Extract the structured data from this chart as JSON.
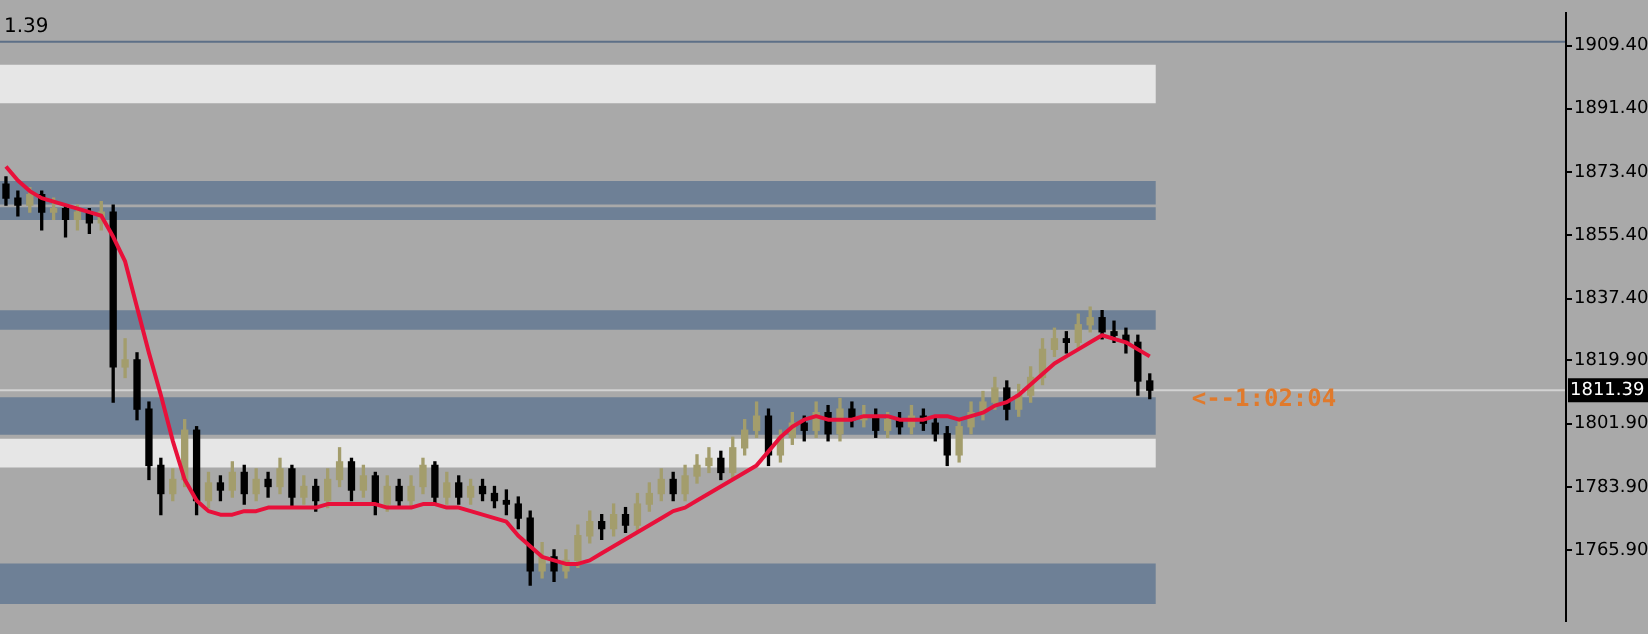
{
  "chart_data": {
    "type": "candlestick",
    "categories": [
      null,
      null,
      null,
      null,
      null,
      null,
      null,
      null,
      null,
      null,
      null,
      null,
      null,
      null,
      null,
      null,
      null,
      null,
      null,
      null,
      null,
      null,
      null,
      null,
      null,
      null,
      null,
      null,
      null,
      null,
      null,
      null,
      null,
      null,
      null,
      null,
      null,
      null,
      null,
      null,
      null,
      null,
      null,
      null,
      null,
      null,
      null,
      null,
      null,
      null,
      null,
      null,
      null,
      null,
      null,
      null,
      null,
      null,
      null,
      null,
      null,
      null,
      null,
      null,
      null,
      null,
      null,
      null,
      null,
      null,
      null,
      null,
      null,
      null,
      null,
      null,
      null,
      null,
      null,
      null,
      null,
      null,
      null,
      null,
      null,
      null,
      null,
      null,
      null,
      null,
      null,
      null,
      null,
      null,
      null,
      null,
      null
    ],
    "series": [
      {
        "colors": [
          "#000000",
          "#000000",
          "#a39d6c",
          "#000000",
          "#a39d6c",
          "#000000",
          "#a39d6c",
          "#000000",
          "#a39d6c",
          "#000000",
          "#a39d6c",
          "#000000",
          "#000000",
          "#000000",
          "#a39d6c",
          "#a39d6c",
          "#000000",
          "#a39d6c",
          "#000000",
          "#a39d6c",
          "#000000",
          "#a39d6c",
          "#000000",
          "#a39d6c",
          "#000000",
          "#a39d6c",
          "#000000",
          "#a39d6c",
          "#a39d6c",
          "#000000",
          "#a39d6c",
          "#000000",
          "#a39d6c",
          "#000000",
          "#a39d6c",
          "#a39d6c",
          "#000000",
          "#a39d6c",
          "#000000",
          "#a39d6c",
          "#000000",
          "#000000",
          "#000000",
          "#000000",
          "#000000",
          "#a39d6c",
          "#000000",
          "#a39d6c",
          "#a39d6c",
          "#a39d6c",
          "#000000",
          "#a39d6c",
          "#000000",
          "#a39d6c",
          "#a39d6c",
          "#a39d6c",
          "#000000",
          "#a39d6c",
          "#a39d6c",
          "#a39d6c",
          "#000000",
          "#a39d6c",
          "#a39d6c",
          "#a39d6c",
          "#000000",
          "#a39d6c",
          "#a39d6c",
          "#000000",
          "#a39d6c",
          "#000000",
          "#a39d6c",
          "#000000",
          "#a39d6c",
          "#000000",
          "#a39d6c",
          "#000000",
          "#a39d6c",
          "#000000",
          "#000000",
          "#000000",
          "#a39d6c",
          "#a39d6c",
          "#a39d6c",
          "#a39d6c",
          "#000000",
          "#a39d6c",
          "#a39d6c",
          "#a39d6c",
          "#a39d6c",
          "#000000",
          "#a39d6c",
          "#a39d6c",
          "#000000",
          "#000000",
          "#000000",
          "#000000",
          "#000000"
        ],
        "ohlc": [
          [
            1870,
            1872,
            1864,
            1866
          ],
          [
            1866,
            1868,
            1861,
            1864
          ],
          [
            1864,
            1869,
            1862,
            1867
          ],
          [
            1867,
            1868,
            1857,
            1862
          ],
          [
            1862,
            1866,
            1860,
            1863
          ],
          [
            1863,
            1864,
            1855,
            1860
          ],
          [
            1860,
            1864,
            1857,
            1862
          ],
          [
            1862,
            1863,
            1856,
            1859
          ],
          [
            1859,
            1865,
            1857,
            1862
          ],
          [
            1862,
            1864,
            1808,
            1818
          ],
          [
            1818,
            1826,
            1815,
            1820
          ],
          [
            1820,
            1822,
            1803,
            1806
          ],
          [
            1806,
            1808,
            1786,
            1790
          ],
          [
            1790,
            1792,
            1776,
            1782
          ],
          [
            1782,
            1789,
            1780,
            1786
          ],
          [
            1786,
            1803,
            1784,
            1800
          ],
          [
            1800,
            1801,
            1776,
            1780
          ],
          [
            1780,
            1788,
            1778,
            1785
          ],
          [
            1785,
            1787,
            1780,
            1783
          ],
          [
            1783,
            1791,
            1781,
            1788
          ],
          [
            1788,
            1790,
            1779,
            1782
          ],
          [
            1782,
            1789,
            1780,
            1786
          ],
          [
            1786,
            1788,
            1781,
            1784
          ],
          [
            1784,
            1792,
            1782,
            1789
          ],
          [
            1789,
            1790,
            1778,
            1781
          ],
          [
            1781,
            1787,
            1779,
            1784
          ],
          [
            1784,
            1786,
            1777,
            1780
          ],
          [
            1780,
            1789,
            1778,
            1786
          ],
          [
            1786,
            1795,
            1784,
            1791
          ],
          [
            1791,
            1792,
            1780,
            1783
          ],
          [
            1783,
            1790,
            1781,
            1787
          ],
          [
            1787,
            1788,
            1776,
            1779
          ],
          [
            1779,
            1787,
            1777,
            1784
          ],
          [
            1784,
            1786,
            1778,
            1780
          ],
          [
            1780,
            1787,
            1778,
            1784
          ],
          [
            1784,
            1792,
            1782,
            1790
          ],
          [
            1790,
            1791,
            1779,
            1781
          ],
          [
            1781,
            1788,
            1779,
            1785
          ],
          [
            1785,
            1787,
            1779,
            1781
          ],
          [
            1781,
            1786,
            1779,
            1784
          ],
          [
            1784,
            1786,
            1780,
            1782
          ],
          [
            1782,
            1784,
            1778,
            1780
          ],
          [
            1780,
            1783,
            1776,
            1779
          ],
          [
            1779,
            1781,
            1772,
            1775
          ],
          [
            1775,
            1777,
            1756,
            1760
          ],
          [
            1760,
            1768,
            1758,
            1764
          ],
          [
            1764,
            1766,
            1757,
            1760
          ],
          [
            1760,
            1766,
            1758,
            1763
          ],
          [
            1763,
            1773,
            1761,
            1770
          ],
          [
            1770,
            1777,
            1768,
            1774
          ],
          [
            1774,
            1776,
            1769,
            1772
          ],
          [
            1772,
            1779,
            1770,
            1776
          ],
          [
            1776,
            1778,
            1771,
            1773
          ],
          [
            1773,
            1782,
            1771,
            1779
          ],
          [
            1779,
            1785,
            1777,
            1782
          ],
          [
            1782,
            1789,
            1780,
            1786
          ],
          [
            1786,
            1788,
            1780,
            1782
          ],
          [
            1782,
            1790,
            1780,
            1787
          ],
          [
            1787,
            1793,
            1785,
            1790
          ],
          [
            1790,
            1795,
            1788,
            1792
          ],
          [
            1792,
            1794,
            1786,
            1788
          ],
          [
            1788,
            1798,
            1786,
            1795
          ],
          [
            1795,
            1803,
            1793,
            1800
          ],
          [
            1800,
            1808,
            1798,
            1804
          ],
          [
            1804,
            1806,
            1790,
            1793
          ],
          [
            1793,
            1800,
            1791,
            1798
          ],
          [
            1798,
            1805,
            1796,
            1802
          ],
          [
            1802,
            1804,
            1797,
            1800
          ],
          [
            1800,
            1808,
            1798,
            1805
          ],
          [
            1805,
            1807,
            1797,
            1799
          ],
          [
            1799,
            1809,
            1797,
            1806
          ],
          [
            1806,
            1808,
            1801,
            1803
          ],
          [
            1803,
            1807,
            1801,
            1804
          ],
          [
            1804,
            1806,
            1798,
            1800
          ],
          [
            1800,
            1805,
            1798,
            1803
          ],
          [
            1803,
            1805,
            1799,
            1801
          ],
          [
            1801,
            1807,
            1799,
            1804
          ],
          [
            1804,
            1806,
            1800,
            1802
          ],
          [
            1802,
            1804,
            1797,
            1799
          ],
          [
            1799,
            1801,
            1790,
            1793
          ],
          [
            1793,
            1803,
            1791,
            1801
          ],
          [
            1801,
            1808,
            1799,
            1805
          ],
          [
            1805,
            1811,
            1803,
            1808
          ],
          [
            1808,
            1815,
            1806,
            1812
          ],
          [
            1812,
            1814,
            1803,
            1806
          ],
          [
            1806,
            1813,
            1804,
            1810
          ],
          [
            1810,
            1818,
            1808,
            1815
          ],
          [
            1815,
            1826,
            1813,
            1823
          ],
          [
            1823,
            1829,
            1821,
            1826
          ],
          [
            1826,
            1828,
            1822,
            1825
          ],
          [
            1825,
            1833,
            1823,
            1830
          ],
          [
            1830,
            1835,
            1828,
            1832
          ],
          [
            1832,
            1834,
            1826,
            1828
          ],
          [
            1828,
            1831,
            1825,
            1827
          ],
          [
            1827,
            1829,
            1822,
            1825
          ],
          [
            1825,
            1827,
            1810,
            1814
          ],
          [
            1814,
            1816,
            1809,
            1811.4
          ]
        ]
      },
      {
        "type": "line",
        "color": "#e8103a",
        "values": [
          1875,
          1871,
          1868,
          1866,
          1865,
          1864,
          1863,
          1862,
          1861,
          1855,
          1848,
          1835,
          1822,
          1810,
          1797,
          1786,
          1780,
          1777,
          1776,
          1776,
          1777,
          1777,
          1778,
          1778,
          1778,
          1778,
          1778,
          1779,
          1779,
          1779,
          1779,
          1779,
          1778,
          1778,
          1778,
          1779,
          1779,
          1778,
          1778,
          1777,
          1776,
          1775,
          1774,
          1770,
          1767,
          1764,
          1763,
          1762,
          1762,
          1763,
          1765,
          1767,
          1769,
          1771,
          1773,
          1775,
          1777,
          1778,
          1780,
          1782,
          1784,
          1786,
          1788,
          1790,
          1794,
          1798,
          1801,
          1803,
          1804,
          1803,
          1803,
          1803,
          1804,
          1804,
          1804,
          1803,
          1803,
          1803,
          1804,
          1804,
          1803,
          1804,
          1805,
          1807,
          1808,
          1810,
          1813,
          1816,
          1819,
          1821,
          1823,
          1825,
          1827,
          1826,
          1825,
          1823,
          1821
        ]
      }
    ],
    "ylim": [
      1745.7,
      1918.7
    ],
    "yticks": [
      {
        "value": 1909.4,
        "label": "1909.40"
      },
      {
        "value": 1891.4,
        "label": "1891.40"
      },
      {
        "value": 1873.4,
        "label": "1873.40"
      },
      {
        "value": 1855.4,
        "label": "1855.40"
      },
      {
        "value": 1837.4,
        "label": "1837.40"
      },
      {
        "value": 1819.9,
        "label": "1819.90"
      },
      {
        "value": 1801.9,
        "label": "1801.90"
      },
      {
        "value": 1783.9,
        "label": "1783.90"
      },
      {
        "value": 1765.9,
        "label": "1765.90"
      }
    ],
    "tick_labels": "y",
    "grid": false,
    "legend": false,
    "bands": [
      {
        "axis": "y",
        "from": 1893.0,
        "to": 1903.9,
        "color": "#e6e6e6"
      },
      {
        "axis": "y",
        "from": 1864.2,
        "to": 1870.9,
        "color": "#6e8096"
      },
      {
        "axis": "y",
        "from": 1859.8,
        "to": 1863.4,
        "color": "#6e8096"
      },
      {
        "axis": "y",
        "from": 1828.6,
        "to": 1834.1,
        "color": "#6e8096"
      },
      {
        "axis": "y",
        "from": 1798.7,
        "to": 1809.4,
        "color": "#6e8096"
      },
      {
        "axis": "y",
        "from": 1789.4,
        "to": 1797.6,
        "color": "#e6e6e6"
      },
      {
        "axis": "y",
        "from": 1750.6,
        "to": 1762.1,
        "color": "#6e8096"
      }
    ],
    "ref_lines": [
      {
        "axis": "y",
        "value": 1910.5,
        "color": "#5d6f87"
      },
      {
        "axis": "y",
        "value": 1811.39,
        "label": "1811.39",
        "color": "#d2d2d2"
      }
    ],
    "annotations": [
      "1.39",
      "<--1:02:04"
    ]
  }
}
